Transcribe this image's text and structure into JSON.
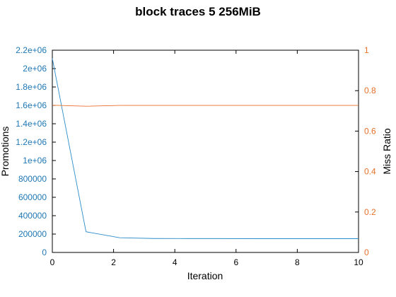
{
  "chart_data": {
    "type": "line",
    "title": "block traces 5 256MiB",
    "xlabel": "Iteration",
    "ylabel_left": "Promotions",
    "ylabel_right": "Miss Ratio",
    "xlim": [
      0,
      10
    ],
    "ylim_left": [
      0,
      2200000
    ],
    "ylim_right": [
      0,
      1
    ],
    "x_ticks": [
      0,
      2,
      4,
      6,
      8,
      10
    ],
    "x_tick_labels": [
      "0",
      "2",
      "4",
      "6",
      "8",
      "10"
    ],
    "y_left_ticks": [
      0,
      200000,
      400000,
      600000,
      800000,
      1000000,
      1200000,
      1400000,
      1600000,
      1800000,
      2000000,
      2200000
    ],
    "y_left_tick_labels": [
      "0",
      "200000",
      "400000",
      "600000",
      "800000",
      "1e+06",
      "1.2e+06",
      "1.4e+06",
      "1.6e+06",
      "1.8e+06",
      "2e+06",
      "2.2e+06"
    ],
    "y_right_ticks": [
      0,
      0.2,
      0.4,
      0.6,
      0.8,
      1
    ],
    "y_right_tick_labels": [
      "0",
      "0.2",
      "0.4",
      "0.6",
      "0.8",
      "1"
    ],
    "grid": false,
    "legend": "none",
    "series": [
      {
        "axis": "left",
        "color": "#2a8cc8",
        "x": [
          0,
          1.1,
          2.2,
          3.3,
          4.4,
          5.5,
          6.6,
          7.7,
          8.8,
          10
        ],
        "values": [
          2110000,
          225000,
          160000,
          152000,
          151000,
          151000,
          150000,
          150000,
          150000,
          150000
        ]
      },
      {
        "axis": "right",
        "color": "#e8702a",
        "x": [
          0,
          1.1,
          2.2,
          3.3,
          4.4,
          5.5,
          6.6,
          7.7,
          8.8,
          10
        ],
        "values": [
          0.728,
          0.723,
          0.727,
          0.727,
          0.727,
          0.727,
          0.727,
          0.727,
          0.727,
          0.727
        ]
      }
    ],
    "colors": {
      "left_axis": "#1f77b4",
      "right_axis": "#e8702a",
      "axis": "#000000"
    }
  }
}
